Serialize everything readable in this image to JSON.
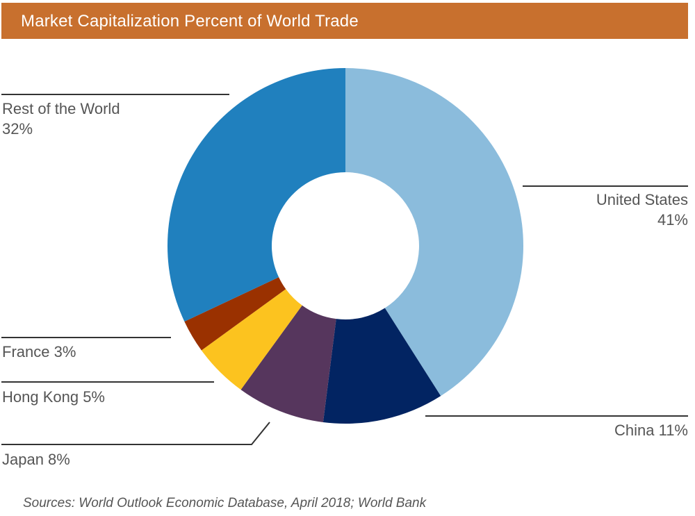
{
  "title": "Market Capitalization Percent of World Trade",
  "source": "Sources: World Outlook Economic Database, April 2018; World Bank",
  "chart_data": {
    "type": "pie",
    "variant": "donut",
    "title": "Market Capitalization Percent of World Trade",
    "slices": [
      {
        "name": "United States",
        "value": 41,
        "label": "41%",
        "color": "#8bbcdc"
      },
      {
        "name": "China",
        "value": 11,
        "label": "11%",
        "color": "#022462"
      },
      {
        "name": "Japan",
        "value": 8,
        "label": "8%",
        "color": "#56365d"
      },
      {
        "name": "Hong Kong",
        "value": 5,
        "label": "5%",
        "color": "#fcc31f"
      },
      {
        "name": "France",
        "value": 3,
        "label": "3%",
        "color": "#9a3100"
      },
      {
        "name": "Rest of the World",
        "value": 32,
        "label": "32%",
        "color": "#2080be"
      }
    ]
  }
}
